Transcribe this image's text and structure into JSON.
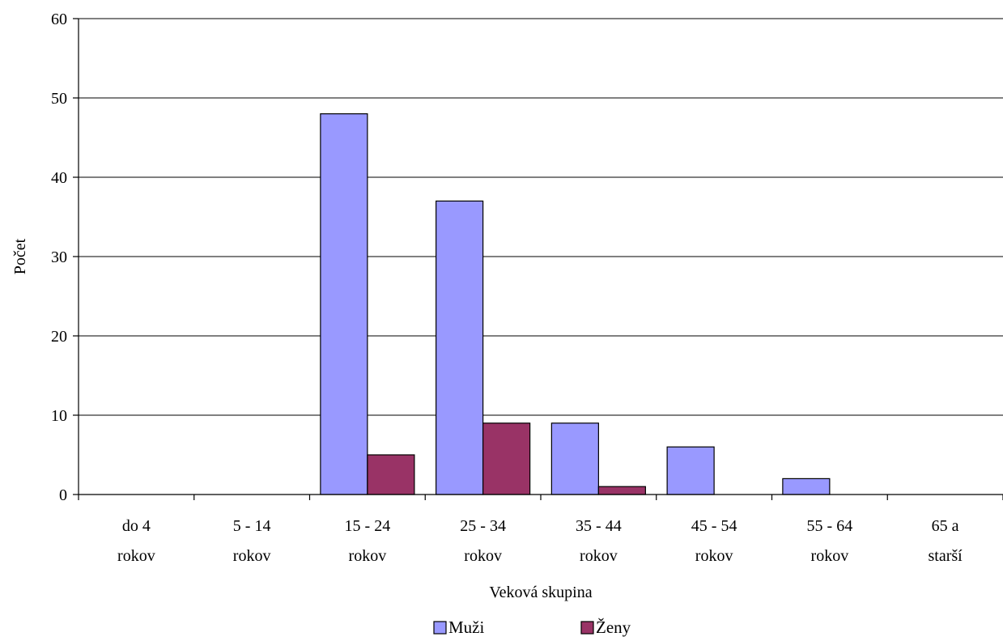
{
  "chart_data": {
    "type": "bar",
    "categories": [
      [
        "do 4",
        "rokov"
      ],
      [
        "5 - 14",
        "rokov"
      ],
      [
        "15 - 24",
        "rokov"
      ],
      [
        "25 - 34",
        "rokov"
      ],
      [
        "35 - 44",
        "rokov"
      ],
      [
        "45 - 54",
        "rokov"
      ],
      [
        "55 - 64",
        "rokov"
      ],
      [
        "65 a",
        "starší"
      ]
    ],
    "series": [
      {
        "name": "Muži",
        "color": "#9999ff",
        "values": [
          0,
          0,
          48,
          37,
          9,
          6,
          2,
          0
        ]
      },
      {
        "name": "Ženy",
        "color": "#993366",
        "values": [
          0,
          0,
          5,
          9,
          1,
          0,
          0,
          0
        ]
      }
    ],
    "xlabel": "Veková skupina",
    "ylabel": "Počet",
    "ylim": [
      0,
      60
    ],
    "yticks": [
      0,
      10,
      20,
      30,
      40,
      50,
      60
    ],
    "grid": true,
    "legend_position": "bottom"
  }
}
